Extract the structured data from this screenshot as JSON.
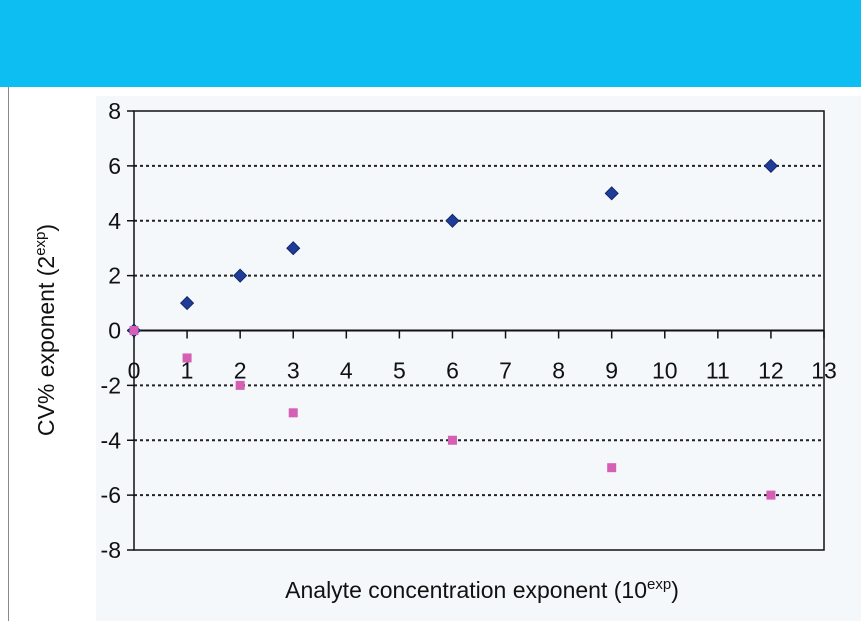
{
  "chart_data": {
    "type": "scatter",
    "title": "",
    "xlabel": "Analyte concentration exponent (10",
    "xlabel_sup": "exp",
    "xlabel_end": ")",
    "ylabel": "CV% exponent (2",
    "ylabel_sup": "exp",
    "ylabel_end": ")",
    "xlim": [
      0,
      13
    ],
    "ylim": [
      -8,
      8
    ],
    "xticks": [
      0,
      1,
      2,
      3,
      4,
      5,
      6,
      7,
      8,
      9,
      10,
      11,
      12,
      13
    ],
    "yticks": [
      8,
      6,
      4,
      2,
      0,
      -2,
      -4,
      -6,
      -8
    ],
    "grid": "horizontal dotted",
    "series": [
      {
        "marker": "diamond",
        "color": "#1f3c99",
        "x": [
          0,
          1,
          2,
          3,
          6,
          9,
          12
        ],
        "y": [
          0,
          1,
          2,
          3,
          4,
          5,
          6
        ]
      },
      {
        "marker": "square",
        "color": "#d45fb3",
        "x": [
          0,
          1,
          2,
          3,
          6,
          9,
          12
        ],
        "y": [
          0,
          -1,
          -2,
          -3,
          -4,
          -5,
          -6
        ]
      }
    ]
  }
}
